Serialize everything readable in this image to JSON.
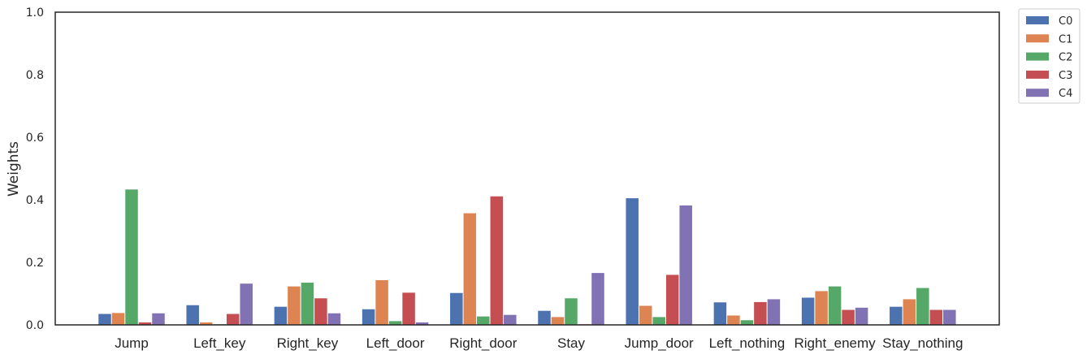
{
  "chart_data": {
    "type": "bar",
    "title": "",
    "xlabel": "",
    "ylabel": "Weights",
    "ylim": [
      0,
      1
    ],
    "yticks": [
      "0.0",
      "0.2",
      "0.4",
      "0.6",
      "0.8",
      "1.0"
    ],
    "categories": [
      "Jump",
      "Left_key",
      "Right_key",
      "Left_door",
      "Right_door",
      "Stay",
      "Jump_door",
      "Left_nothing",
      "Right_enemy",
      "Stay_nothing"
    ],
    "series": [
      {
        "name": "C0",
        "color": "#4c72b0",
        "values": [
          0.035,
          0.063,
          0.058,
          0.05,
          0.102,
          0.045,
          0.405,
          0.072,
          0.087,
          0.058
        ]
      },
      {
        "name": "C1",
        "color": "#dd8452",
        "values": [
          0.038,
          0.008,
          0.123,
          0.143,
          0.357,
          0.025,
          0.061,
          0.03,
          0.108,
          0.082
        ]
      },
      {
        "name": "C2",
        "color": "#55a868",
        "values": [
          0.433,
          0.002,
          0.135,
          0.012,
          0.027,
          0.085,
          0.025,
          0.015,
          0.123,
          0.118
        ]
      },
      {
        "name": "C3",
        "color": "#c44e52",
        "values": [
          0.008,
          0.035,
          0.085,
          0.103,
          0.411,
          0.002,
          0.16,
          0.073,
          0.048,
          0.048
        ]
      },
      {
        "name": "C4",
        "color": "#8172b3",
        "values": [
          0.037,
          0.132,
          0.037,
          0.008,
          0.032,
          0.166,
          0.382,
          0.082,
          0.055,
          0.048
        ]
      }
    ],
    "grid": false,
    "legend_position": "outside-top-right"
  }
}
